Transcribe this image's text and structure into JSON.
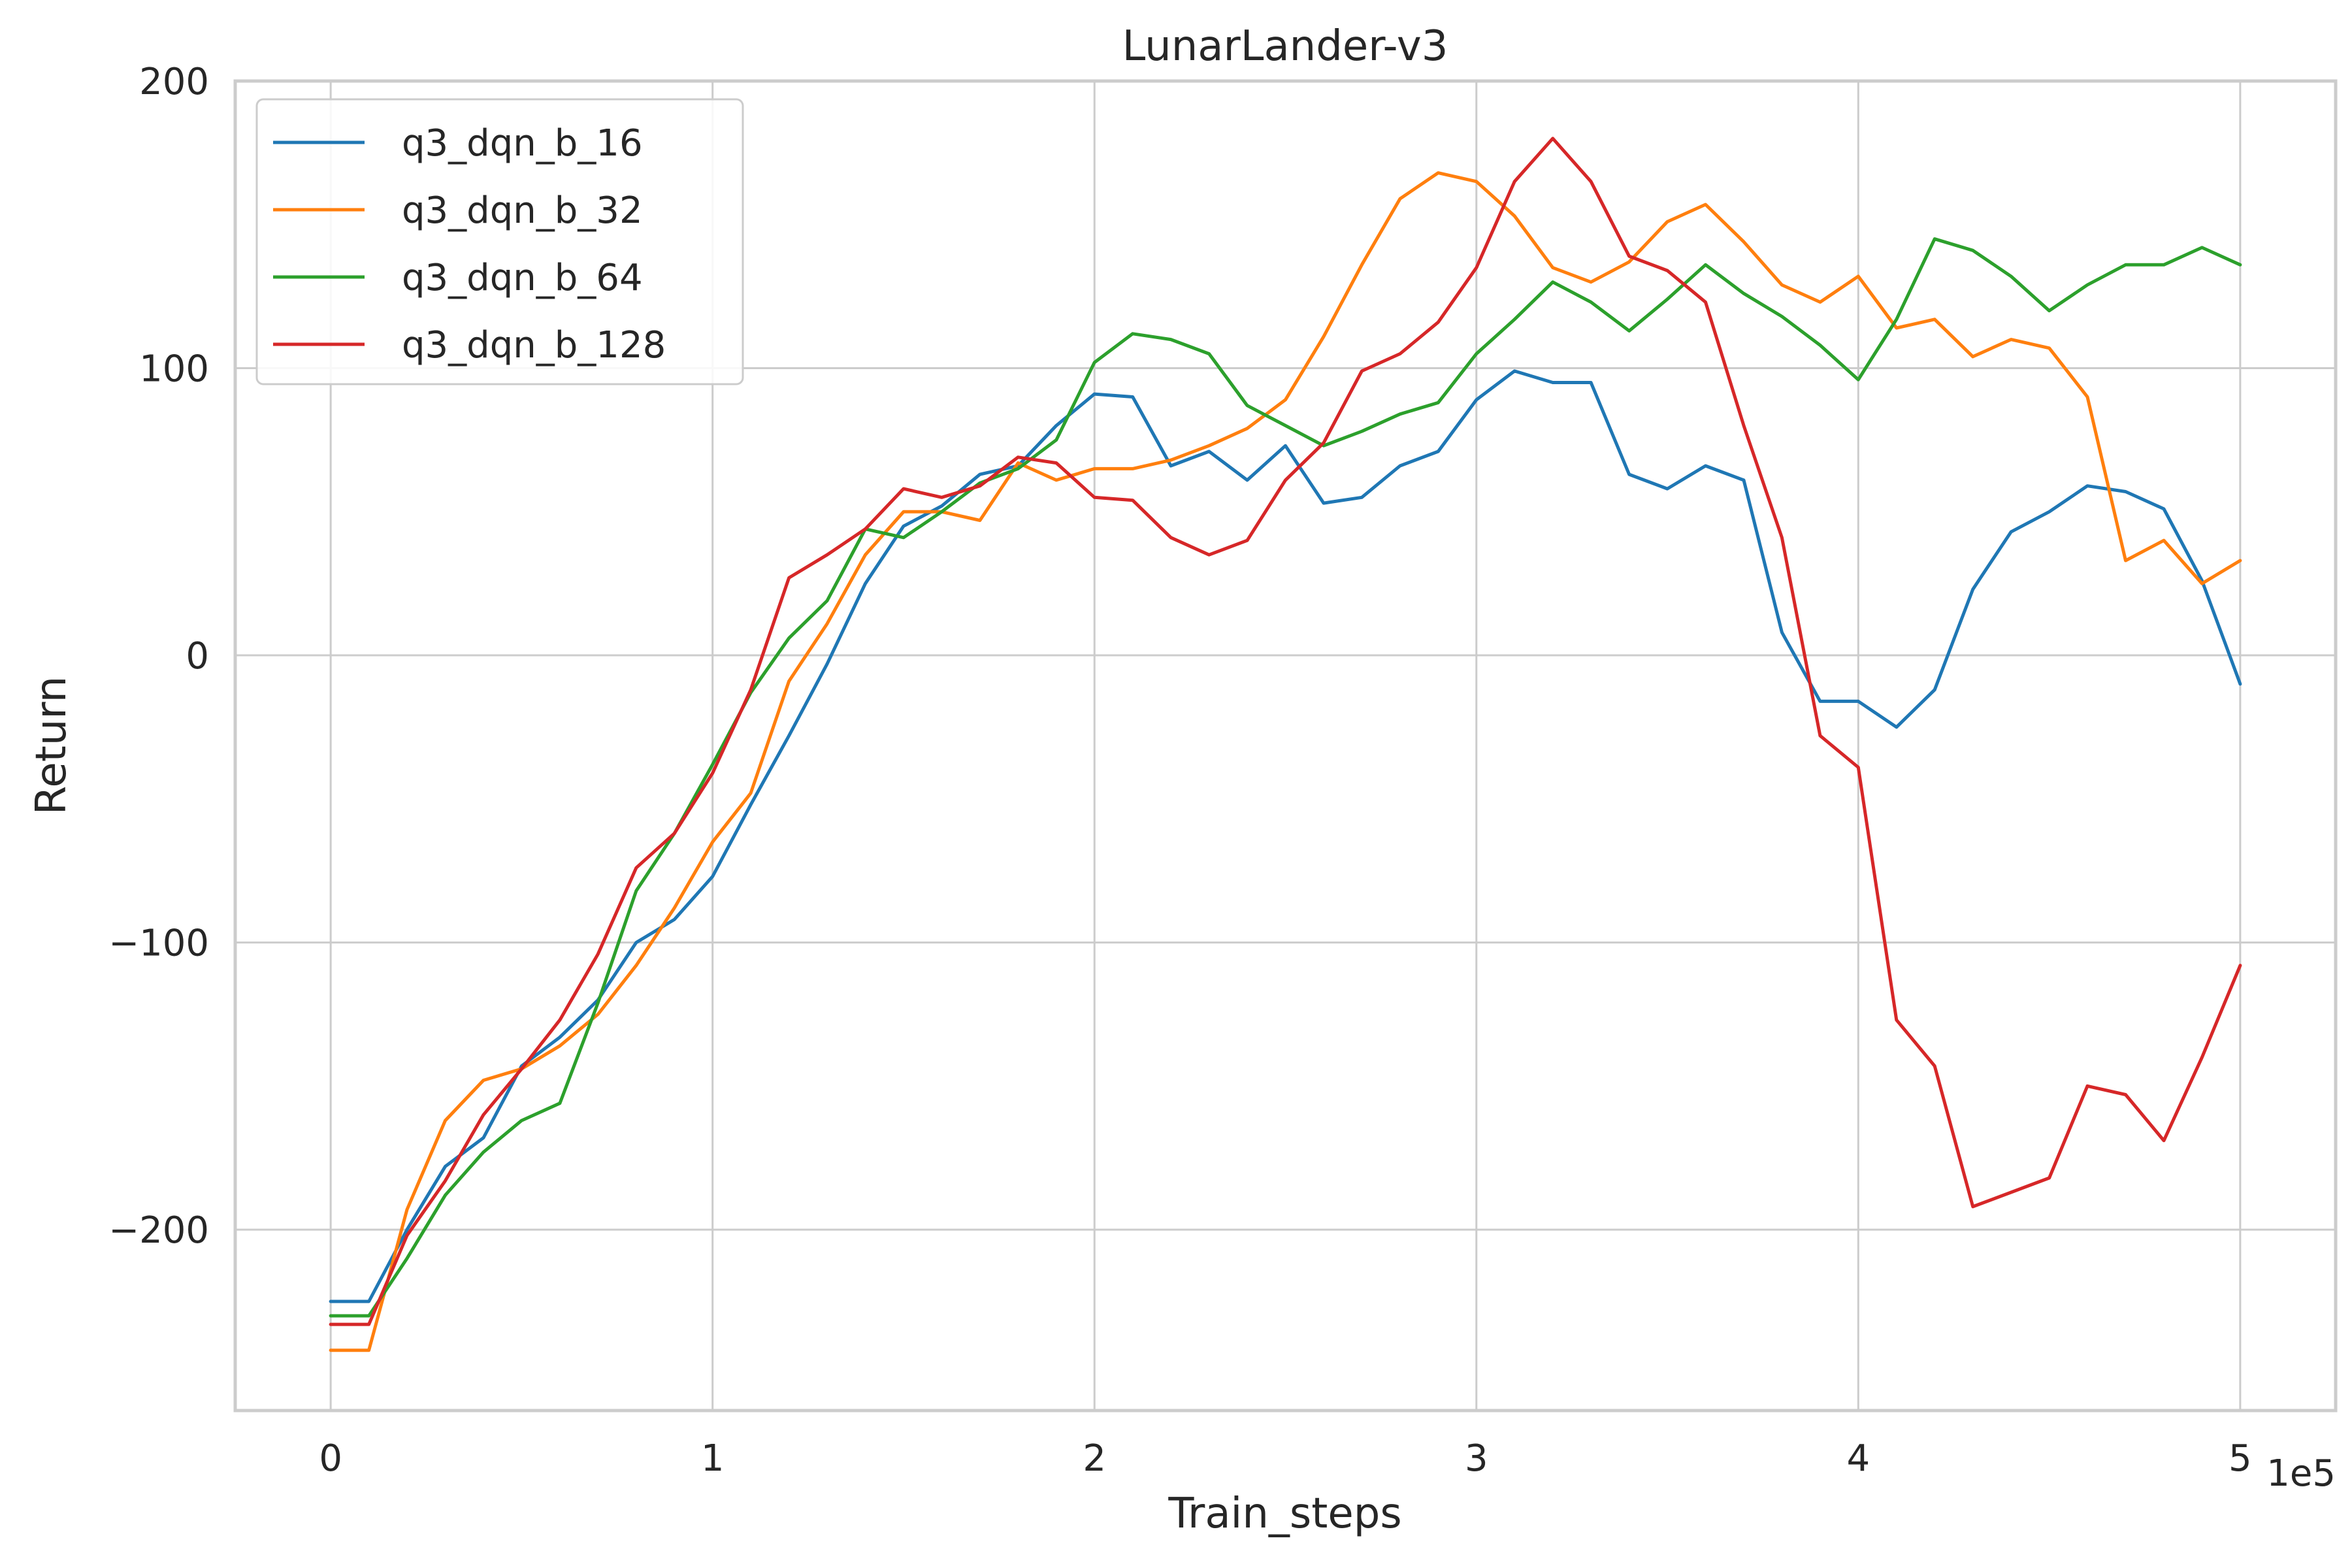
{
  "chart_data": {
    "type": "line",
    "title": "LunarLander-v3",
    "xlabel": "Train_steps",
    "ylabel": "Return",
    "x_offset_text": "1e5",
    "xlim": [
      -25000,
      525000
    ],
    "ylim": [
      -263,
      200
    ],
    "x_ticks": [
      0,
      100000,
      200000,
      300000,
      400000,
      500000
    ],
    "x_tick_labels": [
      "0",
      "1",
      "2",
      "3",
      "4",
      "5"
    ],
    "y_ticks": [
      -200,
      -100,
      0,
      100,
      200
    ],
    "y_tick_labels": [
      "−200",
      "−100",
      "0",
      "100",
      "200"
    ],
    "grid": true,
    "legend_position": "top-left",
    "x": [
      0,
      10000,
      20000,
      30000,
      40000,
      50000,
      60000,
      70000,
      80000,
      90000,
      100000,
      110000,
      120000,
      130000,
      140000,
      150000,
      160000,
      170000,
      180000,
      190000,
      200000,
      210000,
      220000,
      230000,
      240000,
      250000,
      260000,
      270000,
      280000,
      290000,
      300000,
      310000,
      320000,
      330000,
      340000,
      350000,
      360000,
      370000,
      380000,
      390000,
      400000,
      410000,
      420000,
      430000,
      440000,
      450000,
      460000,
      470000,
      480000,
      490000,
      500000
    ],
    "series": [
      {
        "name": "q3_dqn_b_16",
        "color": "#1f77b4",
        "values": [
          -225,
          -225,
          -200,
          -178,
          -168,
          -143,
          -133,
          -120,
          -100,
          -92,
          -77,
          -52,
          -28,
          -3,
          25,
          45,
          52,
          63,
          66,
          80,
          91,
          90,
          66,
          71,
          61,
          73,
          53,
          55,
          66,
          71,
          89,
          99,
          95,
          95,
          63,
          58,
          66,
          61,
          8,
          -16,
          -16,
          -25,
          -12,
          23,
          43,
          50,
          59,
          57,
          51,
          26,
          -10
        ]
      },
      {
        "name": "q3_dqn_b_32",
        "color": "#ff7f0e",
        "values": [
          -242,
          -242,
          -193,
          -162,
          -148,
          -144,
          -136,
          -125,
          -108,
          -88,
          -65,
          -48,
          -9,
          11,
          35,
          50,
          50,
          47,
          67,
          61,
          65,
          65,
          68,
          73,
          79,
          89,
          111,
          136,
          159,
          168,
          165,
          153,
          135,
          130,
          137,
          151,
          157,
          144,
          129,
          123,
          132,
          114,
          117,
          104,
          110,
          107,
          90,
          33,
          40,
          25,
          33
        ]
      },
      {
        "name": "q3_dqn_b_64",
        "color": "#2ca02c",
        "values": [
          -230,
          -230,
          -210,
          -188,
          -173,
          -162,
          -156,
          -121,
          -82,
          -62,
          -38,
          -13,
          6,
          19,
          44,
          41,
          50,
          60,
          65,
          75,
          102,
          112,
          110,
          105,
          87,
          80,
          73,
          78,
          84,
          88,
          105,
          117,
          130,
          123,
          113,
          124,
          136,
          126,
          118,
          108,
          96,
          117,
          145,
          141,
          132,
          120,
          129,
          136,
          136,
          142,
          136
        ]
      },
      {
        "name": "q3_dqn_b_128",
        "color": "#d62728",
        "values": [
          -233,
          -233,
          -202,
          -183,
          -160,
          -144,
          -127,
          -104,
          -74,
          -62,
          -41,
          -12,
          27,
          35,
          44,
          58,
          55,
          59,
          69,
          67,
          55,
          54,
          41,
          35,
          40,
          61,
          74,
          99,
          105,
          116,
          135,
          165,
          180,
          165,
          139,
          134,
          123,
          80,
          41,
          -28,
          -39,
          -127,
          -143,
          -192,
          -187,
          -182,
          -150,
          -153,
          -169,
          -140,
          -108
        ]
      }
    ]
  }
}
